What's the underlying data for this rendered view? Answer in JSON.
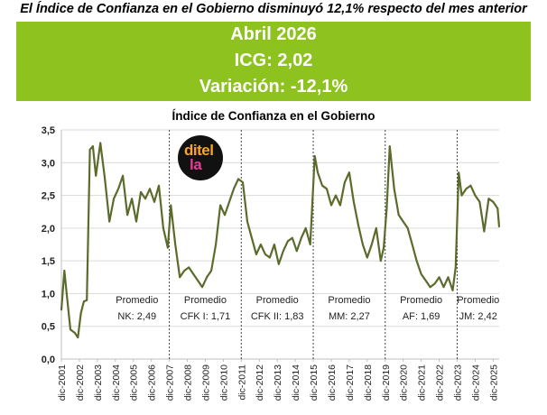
{
  "headline": "El Índice de Confianza en el Gobierno disminuyó 12,1% respecto del mes anterior",
  "banner": {
    "period": "Abril 2026",
    "icg": "ICG: 2,02",
    "variation": "Variación: -12,1%"
  },
  "logo": {
    "line1": "ditel",
    "line2": "la"
  },
  "chart_data": {
    "type": "line",
    "title": "Índice de Confianza en el Gobierno",
    "xlabel": "",
    "ylabel": "",
    "ylim": [
      0,
      3.5
    ],
    "grid": true,
    "legend": "none",
    "y_ticks": [
      0,
      0.5,
      1.0,
      1.5,
      2.0,
      2.5,
      3.0,
      3.5
    ],
    "y_tick_labels": [
      "0,0",
      "0,5",
      "1,0",
      "1,5",
      "2,0",
      "2,5",
      "3,0",
      "3,5"
    ],
    "x_tick_labels": [
      "dic-2001",
      "dic-2002",
      "dic-2003",
      "dic-2004",
      "dic-2005",
      "dic-2006",
      "dic-2007",
      "dic-2008",
      "dic-2009",
      "dic-2010",
      "dic-2011",
      "dic-2012",
      "dic-2013",
      "dic-2014",
      "dic-2015",
      "dic-2016",
      "dic-2017",
      "dic-2018",
      "dic-2019",
      "dic-2020",
      "dic-2021",
      "dic-2022",
      "dic-2023",
      "dic-2024",
      "dic-2025"
    ],
    "x_range": [
      "2001-12",
      "2026-04"
    ],
    "line_color": "#5a6b2b",
    "period_dividers": [
      "2007-12",
      "2011-12",
      "2015-12",
      "2019-12",
      "2023-12"
    ],
    "periods": [
      {
        "label": "Promedio",
        "detail": "NK: 2,49"
      },
      {
        "label": "Promedio",
        "detail": "CFK I: 1,71"
      },
      {
        "label": "Promedio",
        "detail": "CFK II: 1,83"
      },
      {
        "label": "Promedio",
        "detail": "MM: 2,27"
      },
      {
        "label": "Promedio",
        "detail": "AF: 1,69"
      },
      {
        "label": "Promedio",
        "detail": "JM: 2,42"
      }
    ],
    "series": [
      {
        "points": [
          [
            "2001-12",
            0.75
          ],
          [
            "2002-02",
            1.35
          ],
          [
            "2002-04",
            0.9
          ],
          [
            "2002-06",
            0.45
          ],
          [
            "2002-09",
            0.4
          ],
          [
            "2002-11",
            0.33
          ],
          [
            "2003-01",
            0.7
          ],
          [
            "2003-03",
            0.88
          ],
          [
            "2003-05",
            0.9
          ],
          [
            "2003-07",
            3.2
          ],
          [
            "2003-09",
            3.25
          ],
          [
            "2003-11",
            2.8
          ],
          [
            "2004-02",
            3.3
          ],
          [
            "2004-05",
            2.75
          ],
          [
            "2004-08",
            2.1
          ],
          [
            "2004-11",
            2.45
          ],
          [
            "2005-02",
            2.6
          ],
          [
            "2005-05",
            2.8
          ],
          [
            "2005-08",
            2.2
          ],
          [
            "2005-11",
            2.45
          ],
          [
            "2006-02",
            2.1
          ],
          [
            "2006-05",
            2.55
          ],
          [
            "2006-08",
            2.45
          ],
          [
            "2006-11",
            2.6
          ],
          [
            "2007-02",
            2.4
          ],
          [
            "2007-05",
            2.65
          ],
          [
            "2007-08",
            2.0
          ],
          [
            "2007-11",
            1.7
          ],
          [
            "2008-01",
            2.35
          ],
          [
            "2008-04",
            1.75
          ],
          [
            "2008-07",
            1.25
          ],
          [
            "2008-10",
            1.35
          ],
          [
            "2009-01",
            1.4
          ],
          [
            "2009-04",
            1.3
          ],
          [
            "2009-07",
            1.2
          ],
          [
            "2009-10",
            1.1
          ],
          [
            "2010-01",
            1.25
          ],
          [
            "2010-04",
            1.35
          ],
          [
            "2010-07",
            1.75
          ],
          [
            "2010-10",
            2.35
          ],
          [
            "2011-01",
            2.2
          ],
          [
            "2011-04",
            2.4
          ],
          [
            "2011-07",
            2.6
          ],
          [
            "2011-10",
            2.75
          ],
          [
            "2012-01",
            2.7
          ],
          [
            "2012-04",
            2.1
          ],
          [
            "2012-07",
            1.85
          ],
          [
            "2012-10",
            1.6
          ],
          [
            "2013-01",
            1.75
          ],
          [
            "2013-04",
            1.6
          ],
          [
            "2013-07",
            1.55
          ],
          [
            "2013-10",
            1.75
          ],
          [
            "2014-01",
            1.45
          ],
          [
            "2014-04",
            1.65
          ],
          [
            "2014-07",
            1.8
          ],
          [
            "2014-10",
            1.85
          ],
          [
            "2015-01",
            1.65
          ],
          [
            "2015-04",
            1.85
          ],
          [
            "2015-07",
            2.0
          ],
          [
            "2015-10",
            1.75
          ],
          [
            "2016-01",
            3.1
          ],
          [
            "2016-03",
            2.85
          ],
          [
            "2016-06",
            2.65
          ],
          [
            "2016-09",
            2.6
          ],
          [
            "2016-12",
            2.35
          ],
          [
            "2017-03",
            2.5
          ],
          [
            "2017-06",
            2.35
          ],
          [
            "2017-09",
            2.7
          ],
          [
            "2017-12",
            2.85
          ],
          [
            "2018-03",
            2.4
          ],
          [
            "2018-06",
            2.05
          ],
          [
            "2018-09",
            1.75
          ],
          [
            "2018-12",
            1.55
          ],
          [
            "2019-03",
            1.75
          ],
          [
            "2019-06",
            2.0
          ],
          [
            "2019-09",
            1.5
          ],
          [
            "2019-11",
            1.7
          ],
          [
            "2020-01",
            2.3
          ],
          [
            "2020-03",
            3.25
          ],
          [
            "2020-06",
            2.6
          ],
          [
            "2020-09",
            2.2
          ],
          [
            "2020-12",
            2.1
          ],
          [
            "2021-03",
            2.0
          ],
          [
            "2021-06",
            1.75
          ],
          [
            "2021-09",
            1.5
          ],
          [
            "2021-12",
            1.3
          ],
          [
            "2022-03",
            1.2
          ],
          [
            "2022-06",
            1.1
          ],
          [
            "2022-09",
            1.15
          ],
          [
            "2022-12",
            1.25
          ],
          [
            "2023-03",
            1.1
          ],
          [
            "2023-06",
            1.25
          ],
          [
            "2023-09",
            1.05
          ],
          [
            "2023-11",
            1.4
          ],
          [
            "2024-01",
            2.85
          ],
          [
            "2024-03",
            2.5
          ],
          [
            "2024-06",
            2.6
          ],
          [
            "2024-09",
            2.65
          ],
          [
            "2024-12",
            2.5
          ],
          [
            "2025-03",
            2.4
          ],
          [
            "2025-06",
            1.95
          ],
          [
            "2025-09",
            2.45
          ],
          [
            "2025-12",
            2.4
          ],
          [
            "2026-03",
            2.3
          ],
          [
            "2026-04",
            2.02
          ]
        ]
      }
    ]
  }
}
